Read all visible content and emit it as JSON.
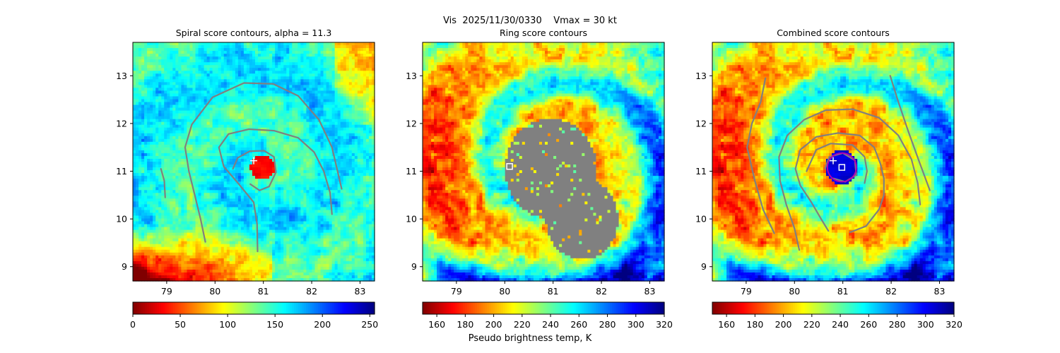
{
  "suptitle": "Vis  2025/11/30/0330    Vmax = 30 kt",
  "colorbar_label": "Pseudo brightness temp, K",
  "chart_data": [
    {
      "type": "heatmap",
      "title": "Spiral score contours, alpha = 11.3",
      "xlim": [
        78.3,
        83.3
      ],
      "ylim": [
        8.7,
        13.7
      ],
      "xticks": [
        "79",
        "80",
        "81",
        "82",
        "83"
      ],
      "yticks": [
        "9",
        "10",
        "11",
        "12",
        "13"
      ],
      "colormap": "jet_r",
      "colorbar": {
        "min": 0,
        "max": 255,
        "ticks": [
          "0",
          "50",
          "100",
          "150",
          "200",
          "250"
        ]
      },
      "contour_color": "#808080",
      "cross_marker": {
        "x": 80.8,
        "y": 11.22,
        "color": "#ffffff"
      },
      "contours": [
        [
          [
            80.37,
            11.05
          ],
          [
            80.47,
            11.28
          ],
          [
            80.72,
            11.42
          ],
          [
            81.02,
            11.43
          ],
          [
            81.22,
            11.3
          ],
          [
            81.26,
            10.98
          ],
          [
            81.12,
            10.68
          ],
          [
            80.92,
            10.6
          ],
          [
            80.73,
            10.73
          ]
        ],
        [
          [
            80.88,
            9.32
          ],
          [
            80.87,
            9.9
          ],
          [
            80.8,
            10.35
          ],
          [
            80.5,
            10.72
          ],
          [
            80.18,
            11.1
          ],
          [
            80.08,
            11.5
          ],
          [
            80.28,
            11.78
          ],
          [
            80.7,
            11.88
          ],
          [
            81.22,
            11.85
          ],
          [
            81.72,
            11.7
          ],
          [
            82.05,
            11.4
          ],
          [
            82.25,
            11.0
          ],
          [
            82.38,
            10.55
          ],
          [
            82.42,
            10.1
          ]
        ],
        [
          [
            79.8,
            9.52
          ],
          [
            79.7,
            10.0
          ],
          [
            79.58,
            10.5
          ],
          [
            79.46,
            11.0
          ],
          [
            79.38,
            11.5
          ],
          [
            79.52,
            11.98
          ],
          [
            79.95,
            12.55
          ],
          [
            80.6,
            12.85
          ],
          [
            81.2,
            12.83
          ],
          [
            81.72,
            12.58
          ],
          [
            82.15,
            12.08
          ],
          [
            82.42,
            11.5
          ],
          [
            82.62,
            10.63
          ]
        ],
        [
          [
            78.88,
            11.05
          ],
          [
            78.95,
            10.8
          ],
          [
            78.97,
            10.45
          ]
        ]
      ]
    },
    {
      "type": "heatmap",
      "title": "Ring score contours",
      "xlim": [
        78.3,
        83.3
      ],
      "ylim": [
        8.7,
        13.7
      ],
      "xticks": [
        "79",
        "80",
        "81",
        "82",
        "83"
      ],
      "yticks": [
        "9",
        "10",
        "11",
        "12",
        "13"
      ],
      "colormap": "jet_r",
      "colorbar": {
        "min": 150,
        "max": 320,
        "ticks": [
          "160",
          "180",
          "200",
          "220",
          "240",
          "260",
          "280",
          "300",
          "320"
        ]
      },
      "masked_region_color": "#808080",
      "square_marker": {
        "x": 80.1,
        "y": 11.1,
        "color": "#ffffff"
      }
    },
    {
      "type": "heatmap",
      "title": "Combined score contours",
      "xlim": [
        78.3,
        83.3
      ],
      "ylim": [
        8.7,
        13.7
      ],
      "xticks": [
        "79",
        "80",
        "81",
        "82",
        "83"
      ],
      "yticks": [
        "9",
        "10",
        "11",
        "12",
        "13"
      ],
      "colormap": "jet_r",
      "colorbar": {
        "min": 150,
        "max": 320,
        "ticks": [
          "160",
          "180",
          "200",
          "220",
          "240",
          "260",
          "280",
          "300",
          "320"
        ]
      },
      "contour_color": "#808080",
      "ring_color": "#b000b0",
      "ring": {
        "x": 80.98,
        "y": 11.08,
        "radius": 0.3
      },
      "cross_marker": {
        "x": 80.8,
        "y": 11.22,
        "color": "#ffffff"
      },
      "square_marker": {
        "x": 80.98,
        "y": 11.08,
        "color": "#ffffff"
      },
      "contours": [
        [
          [
            80.63,
            11.05
          ],
          [
            80.72,
            11.3
          ],
          [
            81.0,
            11.38
          ],
          [
            81.25,
            11.23
          ],
          [
            81.28,
            10.92
          ],
          [
            81.05,
            10.78
          ],
          [
            80.8,
            10.85
          ]
        ],
        [
          [
            80.25,
            11.0
          ],
          [
            80.45,
            11.45
          ],
          [
            80.75,
            11.58
          ],
          [
            81.2,
            11.55
          ],
          [
            81.45,
            11.3
          ],
          [
            81.5,
            11.0
          ],
          [
            81.45,
            10.75
          ]
        ],
        [
          [
            81.15,
            9.72
          ],
          [
            81.48,
            9.85
          ],
          [
            81.75,
            10.2
          ],
          [
            81.85,
            10.5
          ],
          [
            81.85,
            10.85
          ],
          [
            81.78,
            11.15
          ],
          [
            81.65,
            11.5
          ],
          [
            81.35,
            11.75
          ],
          [
            80.9,
            11.8
          ],
          [
            80.45,
            11.72
          ],
          [
            80.12,
            11.45
          ],
          [
            80.02,
            11.05
          ],
          [
            80.12,
            10.7
          ],
          [
            80.35,
            10.35
          ],
          [
            80.55,
            10.0
          ],
          [
            80.7,
            9.75
          ]
        ],
        [
          [
            80.1,
            9.35
          ],
          [
            80.0,
            9.8
          ],
          [
            79.83,
            10.3
          ],
          [
            79.7,
            10.8
          ],
          [
            79.68,
            11.3
          ],
          [
            79.85,
            11.75
          ],
          [
            80.2,
            12.08
          ],
          [
            80.65,
            12.28
          ],
          [
            81.2,
            12.3
          ],
          [
            81.75,
            12.12
          ],
          [
            82.15,
            11.75
          ],
          [
            82.42,
            11.25
          ],
          [
            82.55,
            10.75
          ],
          [
            82.6,
            10.3
          ]
        ],
        [
          [
            79.58,
            9.7
          ],
          [
            79.35,
            10.2
          ],
          [
            79.18,
            10.8
          ],
          [
            79.02,
            11.5
          ],
          [
            79.12,
            12.0
          ],
          [
            79.3,
            12.45
          ],
          [
            79.4,
            12.95
          ]
        ],
        [
          [
            81.98,
            13.0
          ],
          [
            82.15,
            12.45
          ],
          [
            82.35,
            11.85
          ],
          [
            82.58,
            11.2
          ],
          [
            82.8,
            10.6
          ]
        ]
      ]
    }
  ]
}
